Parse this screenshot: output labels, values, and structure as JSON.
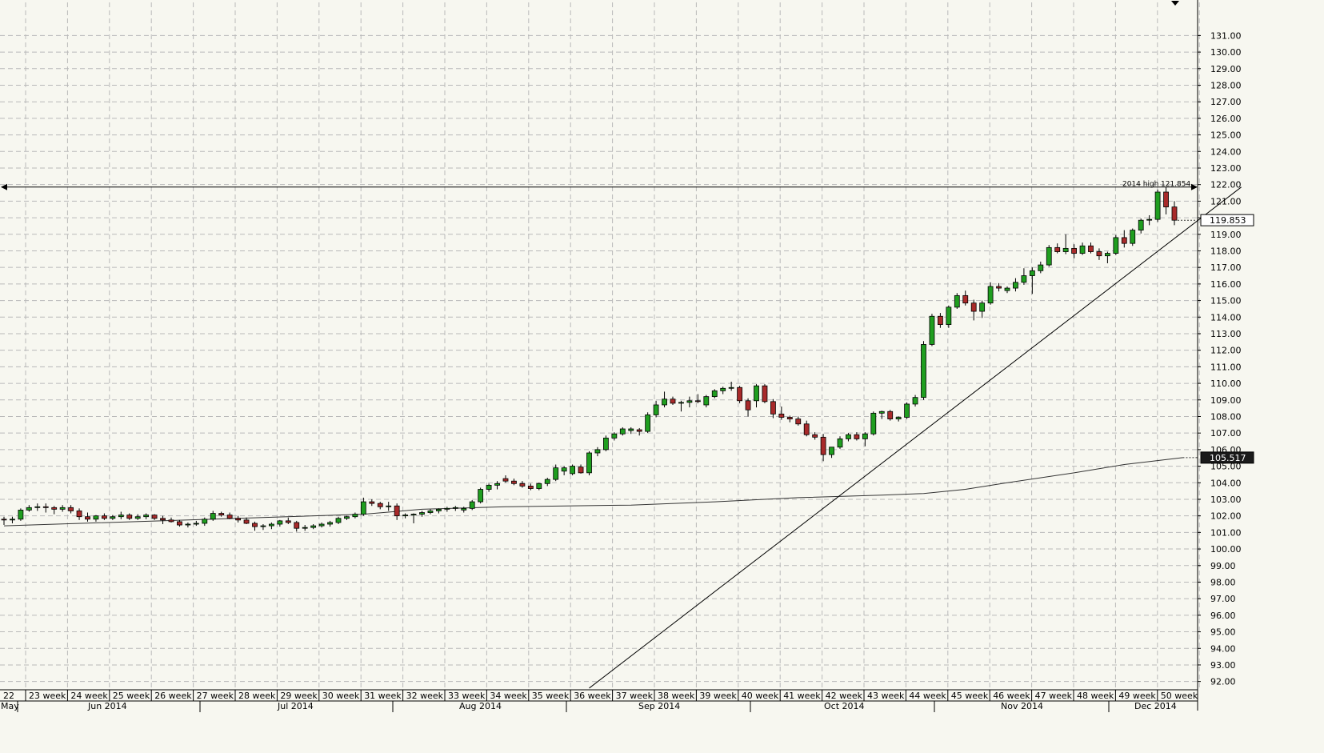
{
  "chart_data": {
    "type": "candlestick",
    "title": "",
    "ylim": [
      91.5,
      131.5
    ],
    "y_ticks": [
      "92.00",
      "93.00",
      "94.00",
      "95.00",
      "96.00",
      "97.00",
      "98.00",
      "99.00",
      "100.00",
      "101.00",
      "102.00",
      "103.00",
      "104.00",
      "105.00",
      "106.00",
      "107.00",
      "108.00",
      "109.00",
      "110.00",
      "111.00",
      "112.00",
      "113.00",
      "114.00",
      "115.00",
      "116.00",
      "117.00",
      "118.00",
      "119.00",
      "120.00",
      "121.00",
      "122.00",
      "123.00",
      "124.00",
      "125.00",
      "126.00",
      "127.00",
      "128.00",
      "129.00",
      "130.00",
      "131.00"
    ],
    "week_labels": [
      "22",
      "23 week",
      "24 week",
      "25 week",
      "26 week",
      "27 week",
      "28 week",
      "29 week",
      "30 week",
      "31 week",
      "32 week",
      "33 week",
      "34 week",
      "35 week",
      "36 week",
      "37 week",
      "38 week",
      "39 week",
      "40 week",
      "41 week",
      "42 week",
      "43 week",
      "44 week",
      "45 week",
      "46 week",
      "47 week",
      "48 week",
      "49 week",
      "50 week"
    ],
    "month_labels": [
      "May",
      "Jun 2014",
      "Jul 2014",
      "Aug 2014",
      "Sep 2014",
      "Oct 2014",
      "Nov 2014",
      "Dec 2014"
    ],
    "candles": [
      {
        "o": 101.8,
        "h": 101.95,
        "l": 101.45,
        "c": 101.75
      },
      {
        "o": 101.75,
        "h": 101.95,
        "l": 101.55,
        "c": 101.8
      },
      {
        "o": 101.8,
        "h": 102.45,
        "l": 101.7,
        "c": 102.35
      },
      {
        "o": 102.35,
        "h": 102.65,
        "l": 102.25,
        "c": 102.5
      },
      {
        "o": 102.5,
        "h": 102.75,
        "l": 102.3,
        "c": 102.55
      },
      {
        "o": 102.55,
        "h": 102.75,
        "l": 102.2,
        "c": 102.5
      },
      {
        "o": 102.5,
        "h": 102.6,
        "l": 102.1,
        "c": 102.4
      },
      {
        "o": 102.4,
        "h": 102.65,
        "l": 102.25,
        "c": 102.5
      },
      {
        "o": 102.5,
        "h": 102.65,
        "l": 102.15,
        "c": 102.3
      },
      {
        "o": 102.3,
        "h": 102.45,
        "l": 101.75,
        "c": 101.95
      },
      {
        "o": 101.95,
        "h": 102.2,
        "l": 101.65,
        "c": 101.8
      },
      {
        "o": 101.8,
        "h": 102.05,
        "l": 101.65,
        "c": 102.0
      },
      {
        "o": 102.0,
        "h": 102.15,
        "l": 101.75,
        "c": 101.85
      },
      {
        "o": 101.85,
        "h": 102.05,
        "l": 101.75,
        "c": 101.95
      },
      {
        "o": 101.95,
        "h": 102.25,
        "l": 101.8,
        "c": 102.05
      },
      {
        "o": 102.05,
        "h": 102.15,
        "l": 101.75,
        "c": 101.85
      },
      {
        "o": 101.85,
        "h": 102.1,
        "l": 101.75,
        "c": 101.95
      },
      {
        "o": 101.95,
        "h": 102.15,
        "l": 101.8,
        "c": 102.05
      },
      {
        "o": 102.05,
        "h": 102.1,
        "l": 101.75,
        "c": 101.85
      },
      {
        "o": 101.85,
        "h": 102.0,
        "l": 101.5,
        "c": 101.75
      },
      {
        "o": 101.75,
        "h": 101.9,
        "l": 101.6,
        "c": 101.65
      },
      {
        "o": 101.65,
        "h": 101.75,
        "l": 101.35,
        "c": 101.45
      },
      {
        "o": 101.45,
        "h": 101.6,
        "l": 101.3,
        "c": 101.5
      },
      {
        "o": 101.5,
        "h": 101.7,
        "l": 101.4,
        "c": 101.55
      },
      {
        "o": 101.55,
        "h": 101.9,
        "l": 101.4,
        "c": 101.8
      },
      {
        "o": 101.8,
        "h": 102.3,
        "l": 101.7,
        "c": 102.15
      },
      {
        "o": 102.15,
        "h": 102.25,
        "l": 101.95,
        "c": 102.05
      },
      {
        "o": 102.05,
        "h": 102.2,
        "l": 101.8,
        "c": 101.85
      },
      {
        "o": 101.85,
        "h": 102.0,
        "l": 101.6,
        "c": 101.75
      },
      {
        "o": 101.75,
        "h": 101.9,
        "l": 101.5,
        "c": 101.55
      },
      {
        "o": 101.55,
        "h": 101.65,
        "l": 101.1,
        "c": 101.35
      },
      {
        "o": 101.35,
        "h": 101.5,
        "l": 101.15,
        "c": 101.4
      },
      {
        "o": 101.4,
        "h": 101.6,
        "l": 101.2,
        "c": 101.5
      },
      {
        "o": 101.5,
        "h": 101.75,
        "l": 101.35,
        "c": 101.7
      },
      {
        "o": 101.7,
        "h": 101.9,
        "l": 101.5,
        "c": 101.6
      },
      {
        "o": 101.6,
        "h": 101.7,
        "l": 101.05,
        "c": 101.25
      },
      {
        "o": 101.25,
        "h": 101.45,
        "l": 101.1,
        "c": 101.3
      },
      {
        "o": 101.3,
        "h": 101.5,
        "l": 101.2,
        "c": 101.4
      },
      {
        "o": 101.4,
        "h": 101.6,
        "l": 101.3,
        "c": 101.5
      },
      {
        "o": 101.5,
        "h": 101.7,
        "l": 101.35,
        "c": 101.6
      },
      {
        "o": 101.6,
        "h": 101.95,
        "l": 101.5,
        "c": 101.85
      },
      {
        "o": 101.85,
        "h": 102.0,
        "l": 101.75,
        "c": 101.95
      },
      {
        "o": 101.95,
        "h": 102.2,
        "l": 101.85,
        "c": 102.1
      },
      {
        "o": 102.1,
        "h": 103.1,
        "l": 102.0,
        "c": 102.85
      },
      {
        "o": 102.85,
        "h": 103.0,
        "l": 102.6,
        "c": 102.75
      },
      {
        "o": 102.75,
        "h": 102.85,
        "l": 102.4,
        "c": 102.55
      },
      {
        "o": 102.55,
        "h": 102.85,
        "l": 102.3,
        "c": 102.6
      },
      {
        "o": 102.6,
        "h": 102.75,
        "l": 101.75,
        "c": 102.0
      },
      {
        "o": 102.0,
        "h": 102.15,
        "l": 101.85,
        "c": 102.05
      },
      {
        "o": 102.05,
        "h": 102.15,
        "l": 101.55,
        "c": 102.1
      },
      {
        "o": 102.1,
        "h": 102.3,
        "l": 101.95,
        "c": 102.2
      },
      {
        "o": 102.2,
        "h": 102.4,
        "l": 102.1,
        "c": 102.3
      },
      {
        "o": 102.3,
        "h": 102.45,
        "l": 102.15,
        "c": 102.4
      },
      {
        "o": 102.4,
        "h": 102.55,
        "l": 102.25,
        "c": 102.45
      },
      {
        "o": 102.45,
        "h": 102.6,
        "l": 102.3,
        "c": 102.5
      },
      {
        "o": 102.35,
        "h": 102.55,
        "l": 102.2,
        "c": 102.45
      },
      {
        "o": 102.45,
        "h": 102.95,
        "l": 102.35,
        "c": 102.85
      },
      {
        "o": 102.85,
        "h": 103.7,
        "l": 102.75,
        "c": 103.6
      },
      {
        "o": 103.6,
        "h": 103.95,
        "l": 103.45,
        "c": 103.85
      },
      {
        "o": 103.85,
        "h": 104.1,
        "l": 103.6,
        "c": 103.95
      },
      {
        "o": 104.25,
        "h": 104.45,
        "l": 104.0,
        "c": 104.1
      },
      {
        "o": 104.1,
        "h": 104.25,
        "l": 103.85,
        "c": 103.95
      },
      {
        "o": 103.95,
        "h": 104.1,
        "l": 103.7,
        "c": 103.8
      },
      {
        "o": 103.8,
        "h": 103.95,
        "l": 103.55,
        "c": 103.65
      },
      {
        "o": 103.65,
        "h": 104.0,
        "l": 103.55,
        "c": 103.95
      },
      {
        "o": 103.95,
        "h": 104.3,
        "l": 103.8,
        "c": 104.2
      },
      {
        "o": 104.2,
        "h": 105.1,
        "l": 104.1,
        "c": 104.9
      },
      {
        "o": 104.7,
        "h": 105.0,
        "l": 104.45,
        "c": 104.9
      },
      {
        "o": 104.55,
        "h": 105.1,
        "l": 104.45,
        "c": 105.0
      },
      {
        "o": 104.95,
        "h": 105.1,
        "l": 104.55,
        "c": 104.6
      },
      {
        "o": 104.6,
        "h": 105.9,
        "l": 104.45,
        "c": 105.8
      },
      {
        "o": 105.8,
        "h": 106.15,
        "l": 105.6,
        "c": 106.0
      },
      {
        "o": 106.0,
        "h": 106.85,
        "l": 105.9,
        "c": 106.7
      },
      {
        "o": 106.7,
        "h": 107.05,
        "l": 106.55,
        "c": 106.95
      },
      {
        "o": 106.95,
        "h": 107.35,
        "l": 106.85,
        "c": 107.25
      },
      {
        "o": 107.15,
        "h": 107.35,
        "l": 106.95,
        "c": 107.25
      },
      {
        "o": 107.2,
        "h": 107.3,
        "l": 106.85,
        "c": 107.1
      },
      {
        "o": 107.1,
        "h": 108.25,
        "l": 107.0,
        "c": 108.1
      },
      {
        "o": 108.1,
        "h": 108.95,
        "l": 107.95,
        "c": 108.7
      },
      {
        "o": 108.7,
        "h": 109.5,
        "l": 108.55,
        "c": 109.05
      },
      {
        "o": 109.05,
        "h": 109.2,
        "l": 108.7,
        "c": 108.8
      },
      {
        "o": 108.8,
        "h": 108.95,
        "l": 108.3,
        "c": 108.85
      },
      {
        "o": 108.85,
        "h": 109.2,
        "l": 108.55,
        "c": 108.95
      },
      {
        "o": 108.95,
        "h": 109.35,
        "l": 108.8,
        "c": 108.9
      },
      {
        "o": 108.7,
        "h": 109.3,
        "l": 108.55,
        "c": 109.2
      },
      {
        "o": 109.2,
        "h": 109.65,
        "l": 109.1,
        "c": 109.55
      },
      {
        "o": 109.55,
        "h": 109.8,
        "l": 109.35,
        "c": 109.7
      },
      {
        "o": 109.7,
        "h": 110.1,
        "l": 109.55,
        "c": 109.75
      },
      {
        "o": 109.75,
        "h": 109.85,
        "l": 108.8,
        "c": 108.95
      },
      {
        "o": 108.95,
        "h": 109.1,
        "l": 108.0,
        "c": 108.4
      },
      {
        "o": 108.95,
        "h": 109.95,
        "l": 108.55,
        "c": 109.85
      },
      {
        "o": 109.85,
        "h": 109.95,
        "l": 108.8,
        "c": 108.9
      },
      {
        "o": 108.9,
        "h": 109.05,
        "l": 107.9,
        "c": 108.15
      },
      {
        "o": 108.15,
        "h": 108.6,
        "l": 107.8,
        "c": 107.95
      },
      {
        "o": 107.95,
        "h": 108.05,
        "l": 107.65,
        "c": 107.85
      },
      {
        "o": 107.85,
        "h": 108.0,
        "l": 107.45,
        "c": 107.55
      },
      {
        "o": 107.55,
        "h": 107.75,
        "l": 106.8,
        "c": 106.9
      },
      {
        "o": 106.9,
        "h": 107.05,
        "l": 106.6,
        "c": 106.75
      },
      {
        "o": 106.75,
        "h": 106.95,
        "l": 105.3,
        "c": 105.7
      },
      {
        "o": 105.7,
        "h": 106.1,
        "l": 105.5,
        "c": 106.15
      },
      {
        "o": 106.15,
        "h": 106.8,
        "l": 106.05,
        "c": 106.65
      },
      {
        "o": 106.65,
        "h": 107.0,
        "l": 106.5,
        "c": 106.9
      },
      {
        "o": 106.9,
        "h": 107.05,
        "l": 106.55,
        "c": 106.65
      },
      {
        "o": 106.65,
        "h": 107.05,
        "l": 106.2,
        "c": 106.95
      },
      {
        "o": 106.95,
        "h": 108.3,
        "l": 106.85,
        "c": 108.2
      },
      {
        "o": 108.2,
        "h": 108.35,
        "l": 107.85,
        "c": 108.3
      },
      {
        "o": 108.3,
        "h": 108.4,
        "l": 107.75,
        "c": 107.85
      },
      {
        "o": 107.85,
        "h": 108.0,
        "l": 107.7,
        "c": 107.95
      },
      {
        "o": 107.95,
        "h": 108.85,
        "l": 107.85,
        "c": 108.75
      },
      {
        "o": 108.75,
        "h": 109.3,
        "l": 108.6,
        "c": 109.15
      },
      {
        "o": 109.15,
        "h": 112.55,
        "l": 109.0,
        "c": 112.35
      },
      {
        "o": 112.35,
        "h": 114.2,
        "l": 112.25,
        "c": 114.05
      },
      {
        "o": 114.05,
        "h": 114.25,
        "l": 113.35,
        "c": 113.55
      },
      {
        "o": 113.55,
        "h": 114.7,
        "l": 113.35,
        "c": 114.6
      },
      {
        "o": 114.6,
        "h": 115.45,
        "l": 114.5,
        "c": 115.3
      },
      {
        "o": 115.3,
        "h": 115.6,
        "l": 114.7,
        "c": 114.85
      },
      {
        "o": 114.85,
        "h": 115.05,
        "l": 113.8,
        "c": 114.35
      },
      {
        "o": 114.35,
        "h": 115.0,
        "l": 113.95,
        "c": 114.85
      },
      {
        "o": 114.85,
        "h": 116.1,
        "l": 114.75,
        "c": 115.85
      },
      {
        "o": 115.85,
        "h": 116.05,
        "l": 115.55,
        "c": 115.75
      },
      {
        "o": 115.6,
        "h": 115.85,
        "l": 115.45,
        "c": 115.75
      },
      {
        "o": 115.75,
        "h": 116.35,
        "l": 115.55,
        "c": 116.1
      },
      {
        "o": 116.1,
        "h": 116.95,
        "l": 115.95,
        "c": 116.5
      },
      {
        "o": 116.5,
        "h": 117.0,
        "l": 115.4,
        "c": 116.8
      },
      {
        "o": 116.8,
        "h": 117.35,
        "l": 116.65,
        "c": 117.15
      },
      {
        "o": 117.15,
        "h": 118.35,
        "l": 117.05,
        "c": 118.2
      },
      {
        "o": 118.2,
        "h": 118.45,
        "l": 117.85,
        "c": 117.95
      },
      {
        "o": 117.95,
        "h": 119.0,
        "l": 117.8,
        "c": 118.15
      },
      {
        "o": 118.15,
        "h": 118.4,
        "l": 117.55,
        "c": 117.85
      },
      {
        "o": 117.85,
        "h": 118.5,
        "l": 117.75,
        "c": 118.3
      },
      {
        "o": 118.3,
        "h": 118.5,
        "l": 117.85,
        "c": 117.95
      },
      {
        "o": 117.95,
        "h": 118.15,
        "l": 117.45,
        "c": 117.7
      },
      {
        "o": 117.7,
        "h": 117.95,
        "l": 117.25,
        "c": 117.85
      },
      {
        "o": 117.85,
        "h": 118.95,
        "l": 117.75,
        "c": 118.8
      },
      {
        "o": 118.8,
        "h": 119.25,
        "l": 118.2,
        "c": 118.45
      },
      {
        "o": 118.45,
        "h": 119.35,
        "l": 118.3,
        "c": 119.25
      },
      {
        "o": 119.25,
        "h": 119.95,
        "l": 119.05,
        "c": 119.85
      },
      {
        "o": 119.85,
        "h": 120.15,
        "l": 119.55,
        "c": 119.9
      },
      {
        "o": 119.9,
        "h": 121.7,
        "l": 119.75,
        "c": 121.55
      },
      {
        "o": 121.55,
        "h": 121.85,
        "l": 120.2,
        "c": 120.65
      },
      {
        "o": 120.65,
        "h": 121.0,
        "l": 119.55,
        "c": 119.85
      }
    ],
    "sma_series": [
      [
        0,
        101.4
      ],
      [
        25,
        101.8
      ],
      [
        43,
        102.1
      ],
      [
        50,
        102.4
      ],
      [
        60,
        102.55
      ],
      [
        75,
        102.65
      ],
      [
        85,
        102.85
      ],
      [
        95,
        103.1
      ],
      [
        105,
        103.25
      ],
      [
        110,
        103.35
      ],
      [
        115,
        103.6
      ],
      [
        120,
        104.0
      ],
      [
        128,
        104.6
      ],
      [
        134,
        105.1
      ],
      [
        141,
        105.517
      ]
    ],
    "high_line": {
      "value": 121.854,
      "label": "2014 high",
      "value_label": "121.854"
    },
    "trendline": {
      "from": {
        "index": 70,
        "value": 91.6
      },
      "to": {
        "index": 148,
        "value": 121.85
      }
    },
    "price_tags": [
      {
        "value": 119.853,
        "label": "119.853",
        "style": "last-price"
      },
      {
        "value": 105.517,
        "label": "105.517",
        "style": "indicator"
      }
    ],
    "grid": true,
    "colors": {
      "bull": "#1f9e1f",
      "bear": "#a82a2a",
      "line": "#000000",
      "background": "#f7f7f0",
      "grid": "#b9b9b9"
    }
  }
}
